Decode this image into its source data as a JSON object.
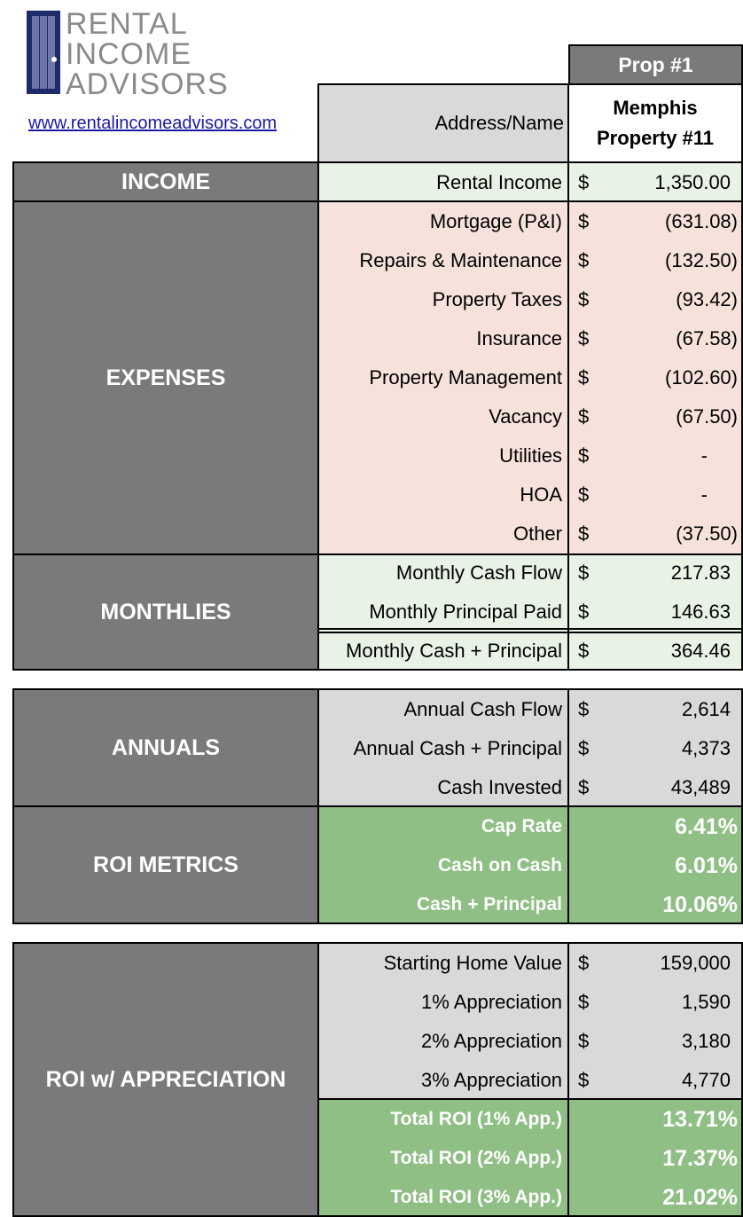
{
  "logo": {
    "line1": "RENTAL",
    "line2": "INCOME",
    "line3": "ADVISORS",
    "icon": "door-icon",
    "brand_color": "#1f2a6b"
  },
  "website": "www.rentalincomeadvisors.com",
  "header": {
    "prop_label": "Prop #1",
    "address_label": "Address/Name",
    "address_value_line1": "Memphis",
    "address_value_line2": "Property #11"
  },
  "sections": {
    "income": "INCOME",
    "expenses": "EXPENSES",
    "monthlies": "MONTHLIES",
    "annuals": "ANNUALS",
    "roi_metrics": "ROI METRICS",
    "roi_appreciation": "ROI w/ APPRECIATION"
  },
  "currency_symbol": "$",
  "income": [
    {
      "label": "Rental Income",
      "value": "1,350.00"
    }
  ],
  "expenses": [
    {
      "label": "Mortgage (P&I)",
      "value": "(631.08)"
    },
    {
      "label": "Repairs & Maintenance",
      "value": "(132.50)"
    },
    {
      "label": "Property Taxes",
      "value": "(93.42)"
    },
    {
      "label": "Insurance",
      "value": "(67.58)"
    },
    {
      "label": "Property Management",
      "value": "(102.60)"
    },
    {
      "label": "Vacancy",
      "value": "(67.50)"
    },
    {
      "label": "Utilities",
      "value": "-"
    },
    {
      "label": "HOA",
      "value": "-"
    },
    {
      "label": "Other",
      "value": "(37.50)"
    }
  ],
  "monthlies": [
    {
      "label": "Monthly Cash Flow",
      "value": "217.83"
    },
    {
      "label": "Monthly Principal Paid",
      "value": "146.63"
    },
    {
      "label": "Monthly Cash + Principal",
      "value": "364.46"
    }
  ],
  "annuals": [
    {
      "label": "Annual Cash Flow",
      "value": "2,614"
    },
    {
      "label": "Annual Cash + Principal",
      "value": "4,373"
    },
    {
      "label": "Cash Invested",
      "value": "43,489"
    }
  ],
  "roi_metrics": [
    {
      "label": "Cap Rate",
      "value": "6.41%"
    },
    {
      "label": "Cash on Cash",
      "value": "6.01%"
    },
    {
      "label": "Cash + Principal",
      "value": "10.06%"
    }
  ],
  "appreciation": [
    {
      "label": "Starting Home Value",
      "value": "159,000"
    },
    {
      "label": "1% Appreciation",
      "value": "1,590"
    },
    {
      "label": "2% Appreciation",
      "value": "3,180"
    },
    {
      "label": "3% Appreciation",
      "value": "4,770"
    }
  ],
  "total_roi": [
    {
      "label": "Total ROI (1% App.)",
      "value": "13.71%"
    },
    {
      "label": "Total ROI (2% App.)",
      "value": "17.37%"
    },
    {
      "label": "Total ROI (3% App.)",
      "value": "21.02%"
    }
  ],
  "colors": {
    "section_gray": "#7a7a7a",
    "income_green": "#e8f3e6",
    "expense_pink": "#f6e2da",
    "neutral_gray": "#d9d9d9",
    "metric_green": "#8fbf85"
  }
}
